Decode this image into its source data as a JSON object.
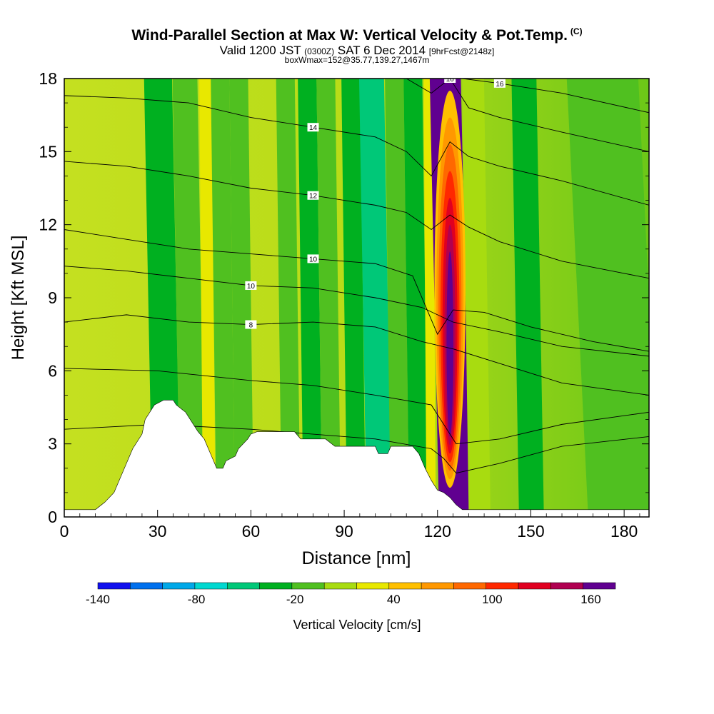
{
  "title": {
    "main": "Wind-Parallel Section at Max W: Vertical Velocity & Pot.Temp.",
    "copyright": "(C)",
    "valid_prefix": "Valid 1200 JST",
    "valid_utc": "(0300Z)",
    "valid_date": "SAT 6 Dec 2014",
    "forecast": "[9hrFcst@2148z]",
    "subtitle2": "boxWmax=152@35.77,139.27,1467m"
  },
  "chart_data": {
    "type": "contour",
    "xlabel": "Distance [nm]",
    "ylabel": "Height [Kft MSL]",
    "xlim": [
      0,
      188
    ],
    "ylim": [
      0,
      18
    ],
    "x_ticks": [
      0,
      30,
      60,
      90,
      120,
      150,
      180
    ],
    "y_ticks": [
      0,
      3,
      6,
      9,
      12,
      15,
      18
    ],
    "colorbar": {
      "label": "Vertical Velocity [cm/s]",
      "tick_labels": [
        "-140",
        "-80",
        "-20",
        "40",
        "100",
        "160"
      ],
      "tick_values": [
        -140,
        -80,
        -20,
        40,
        100,
        160
      ],
      "range": [
        -140,
        175
      ],
      "colors": [
        "#1010ee",
        "#0070ee",
        "#00a8e8",
        "#00d8d0",
        "#00c878",
        "#00b020",
        "#50c020",
        "#a8dc10",
        "#e8e800",
        "#ffc000",
        "#ff9800",
        "#ff6800",
        "#ff2800",
        "#e00020",
        "#b00050",
        "#600090"
      ]
    },
    "terrain_profile": {
      "x": [
        0,
        10,
        13,
        16,
        19,
        22,
        25,
        26,
        29,
        32,
        35,
        36,
        39,
        42,
        43,
        45,
        47,
        48,
        49,
        51,
        52,
        55,
        56,
        59,
        60,
        62,
        63,
        66,
        67,
        69,
        72,
        74,
        76,
        78,
        81,
        84,
        87,
        90,
        93,
        96,
        98,
        100,
        101,
        104,
        105,
        107,
        109,
        112,
        114,
        116,
        118,
        120,
        122,
        124,
        126,
        128,
        130,
        132,
        134,
        188
      ],
      "y": [
        0.3,
        0.3,
        0.6,
        1.0,
        1.9,
        2.8,
        3.4,
        4.0,
        4.6,
        4.8,
        4.8,
        4.6,
        4.3,
        3.7,
        3.5,
        3.2,
        2.6,
        2.3,
        2.0,
        2.0,
        2.3,
        2.5,
        2.8,
        3.2,
        3.4,
        3.5,
        3.5,
        3.5,
        3.5,
        3.5,
        3.5,
        3.5,
        3.2,
        3.2,
        3.2,
        3.2,
        2.9,
        2.9,
        2.9,
        2.9,
        2.9,
        2.9,
        2.6,
        2.6,
        2.9,
        2.9,
        2.9,
        2.9,
        2.6,
        2.0,
        1.5,
        1.1,
        1.0,
        0.8,
        0.5,
        0.3,
        0.3,
        0.3,
        0.3,
        0.3
      ]
    },
    "velocity_bands": [
      {
        "x0": 27,
        "x1": 36,
        "value": -40
      },
      {
        "x0": 36,
        "x1": 44,
        "value": -10
      },
      {
        "x0": 44,
        "x1": 48,
        "value": 30
      },
      {
        "x0": 48,
        "x1": 54,
        "value": -20
      },
      {
        "x0": 54,
        "x1": 60,
        "value": -10
      },
      {
        "x0": 69,
        "x1": 75,
        "value": -20
      },
      {
        "x0": 76,
        "x1": 82,
        "value": -30
      },
      {
        "x0": 82,
        "x1": 88,
        "value": -10
      },
      {
        "x0": 90,
        "x1": 96,
        "value": -30
      },
      {
        "x0": 96,
        "x1": 104,
        "value": -60
      },
      {
        "x0": 104,
        "x1": 110,
        "value": -20
      },
      {
        "x0": 110,
        "x1": 116,
        "value": -40
      },
      {
        "x0": 116,
        "x1": 119,
        "value": 30
      },
      {
        "x0": 119,
        "x1": 129,
        "value": 160
      },
      {
        "x0": 129,
        "x1": 136,
        "value": 0
      },
      {
        "x0": 145,
        "x1": 153,
        "value": -30
      },
      {
        "x0": 165,
        "x1": 188,
        "value": -20
      }
    ],
    "theta_contours": [
      {
        "label": "8",
        "x": [
          0,
          20,
          40,
          60,
          80,
          100,
          115,
          125,
          140,
          160,
          188
        ],
        "y": [
          8.0,
          8.3,
          8.0,
          7.9,
          8.0,
          7.8,
          7.2,
          6.9,
          6.3,
          5.5,
          5.0
        ]
      },
      {
        "label": "10",
        "x": [
          0,
          20,
          40,
          60,
          80,
          100,
          115,
          125,
          140,
          160,
          188
        ],
        "y": [
          10.3,
          10.1,
          9.8,
          9.5,
          9.4,
          9.0,
          8.6,
          8.0,
          7.6,
          7.0,
          6.6
        ]
      },
      {
        "label": "10",
        "x": [
          0,
          20,
          40,
          60,
          80,
          100,
          112,
          120,
          125,
          135,
          150,
          170,
          188
        ],
        "y": [
          11.8,
          11.4,
          11.0,
          10.8,
          10.6,
          10.4,
          9.9,
          7.5,
          8.5,
          8.4,
          7.8,
          7.2,
          6.8
        ]
      },
      {
        "label": "12",
        "x": [
          0,
          20,
          40,
          60,
          80,
          100,
          110,
          118,
          124,
          130,
          140,
          160,
          188
        ],
        "y": [
          14.6,
          14.4,
          14.0,
          13.5,
          13.2,
          12.8,
          12.5,
          11.8,
          12.4,
          11.9,
          11.3,
          10.5,
          9.8
        ]
      },
      {
        "label": "14",
        "x": [
          0,
          20,
          40,
          60,
          80,
          100,
          110,
          118,
          124,
          130,
          140,
          160,
          188
        ],
        "y": [
          17.3,
          17.2,
          17.0,
          16.4,
          16.0,
          15.6,
          15.0,
          14.0,
          15.4,
          14.8,
          14.4,
          13.8,
          12.8
        ]
      },
      {
        "label": "16",
        "x": [
          110,
          118,
          124,
          130,
          140,
          160,
          188
        ],
        "y": [
          18.0,
          17.4,
          18.0,
          16.8,
          16.4,
          15.8,
          15.0
        ]
      },
      {
        "label": "16",
        "x": [
          128,
          140,
          160,
          188
        ],
        "y": [
          18.0,
          17.8,
          17.4,
          16.6
        ]
      },
      {
        "label": "",
        "x": [
          0,
          30,
          60,
          80,
          100,
          118,
          122,
          126,
          140,
          160,
          188
        ],
        "y": [
          6.1,
          6.0,
          5.6,
          5.4,
          5.0,
          4.6,
          3.8,
          3.0,
          3.2,
          3.8,
          4.3
        ]
      },
      {
        "label": "",
        "x": [
          0,
          30,
          60,
          80,
          100,
          118,
          122,
          126,
          140,
          160,
          188
        ],
        "y": [
          3.6,
          3.8,
          3.6,
          3.4,
          3.2,
          2.8,
          2.4,
          1.8,
          2.2,
          2.9,
          3.3
        ]
      }
    ]
  }
}
